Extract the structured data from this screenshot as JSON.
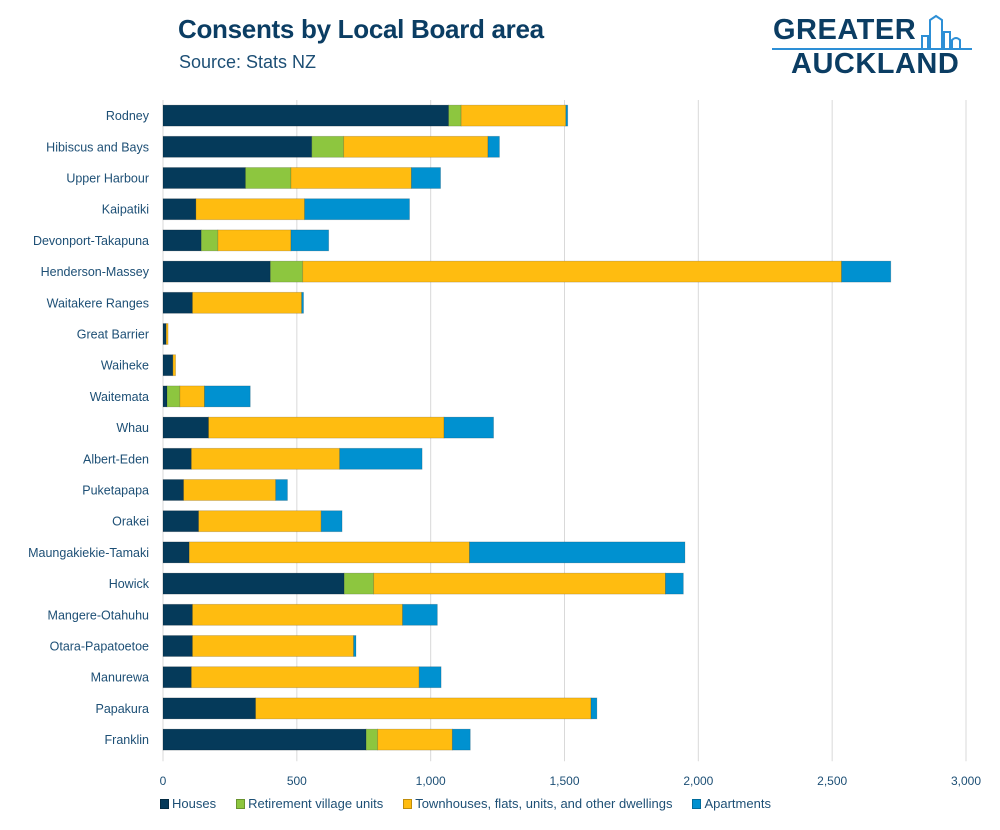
{
  "header": {
    "title": "Consents by Local Board area",
    "subtitle": "Source: Stats NZ",
    "logo_line1": "GREATER",
    "logo_line2": "AUCKLAND"
  },
  "chart_data": {
    "type": "bar",
    "orientation": "horizontal",
    "stacked": true,
    "title": "Consents by Local Board area",
    "subtitle": "Source: Stats NZ",
    "xlabel": "",
    "ylabel": "",
    "xlim": [
      0,
      3000
    ],
    "x_ticks": [
      0,
      500,
      1000,
      1500,
      2000,
      2500,
      3000
    ],
    "x_tick_labels": [
      "0",
      "500",
      "1,000",
      "1,500",
      "2,000",
      "2,500",
      "3,000"
    ],
    "grid": "vertical",
    "legend_position": "bottom",
    "categories": [
      "Rodney",
      "Hibiscus and Bays",
      "Upper Harbour",
      "Kaipatiki",
      "Devonport-Takapuna",
      "Henderson-Massey",
      "Waitakere Ranges",
      "Great Barrier",
      "Waiheke",
      "Waitemata",
      "Whau",
      "Albert-Eden",
      "Puketapapa",
      "Orakei",
      "Maungakiekie-Tamaki",
      "Howick",
      "Mangere-Otahuhu",
      "Otara-Papatoetoe",
      "Manurewa",
      "Papakura",
      "Franklin"
    ],
    "series": [
      {
        "name": "Houses",
        "color": "#053a5a",
        "values": [
          1067,
          556,
          308,
          123,
          143,
          401,
          110,
          12,
          37,
          15,
          170,
          106,
          77,
          133,
          98,
          677,
          110,
          110,
          106,
          346,
          759
        ]
      },
      {
        "name": "Retirement village units",
        "color": "#8dc63f",
        "values": [
          47,
          119,
          170,
          0,
          62,
          121,
          0,
          0,
          0,
          48,
          0,
          0,
          0,
          0,
          0,
          110,
          0,
          0,
          0,
          0,
          43
        ]
      },
      {
        "name": "Townhouses, flats, units, and other dwellings",
        "color": "#ffbc10",
        "values": [
          391,
          539,
          450,
          406,
          273,
          2013,
          408,
          7,
          10,
          92,
          880,
          554,
          344,
          458,
          1047,
          1090,
          785,
          602,
          851,
          1253,
          279
        ]
      },
      {
        "name": "Apartments",
        "color": "#0091d0",
        "values": [
          7,
          43,
          109,
          392,
          141,
          184,
          7,
          0,
          0,
          171,
          185,
          308,
          44,
          78,
          805,
          67,
          130,
          9,
          82,
          22,
          67
        ]
      }
    ]
  }
}
